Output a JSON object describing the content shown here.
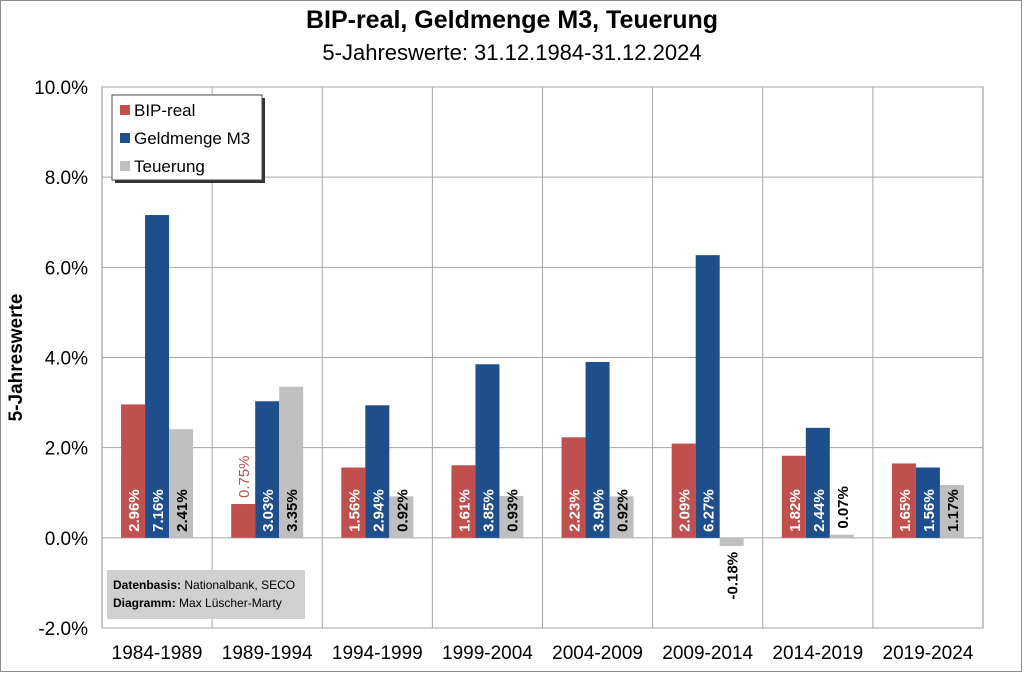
{
  "chart_data": {
    "type": "bar",
    "title": "BIP-real, Geldmenge M3, Teuerung",
    "subtitle": "5-Jahreswerte: 31.12.1984-31.12.2024",
    "ylabel": "5-Jahreswerte",
    "xlabel": "",
    "ylim": [
      -2,
      10
    ],
    "yticks": [
      "-2.0%",
      "0.0%",
      "2.0%",
      "4.0%",
      "6.0%",
      "8.0%",
      "10.0%"
    ],
    "grid": true,
    "legend_position": "top-left",
    "categories": [
      "1984-1989",
      "1989-1994",
      "1994-1999",
      "1999-2004",
      "2004-2009",
      "2009-2014",
      "2014-2019",
      "2019-2024"
    ],
    "series": [
      {
        "name": "BIP-real",
        "color": "#c0504d",
        "values": [
          2.96,
          0.75,
          1.56,
          1.61,
          2.23,
          2.09,
          1.82,
          1.65
        ],
        "labels": [
          "2.96%",
          "0.75%",
          "1.56%",
          "1.61%",
          "2.23%",
          "2.09%",
          "1.82%",
          "1.65%"
        ]
      },
      {
        "name": "Geldmenge M3",
        "color": "#1f4e8c",
        "values": [
          7.16,
          3.03,
          2.94,
          3.85,
          3.9,
          6.27,
          2.44,
          1.56
        ],
        "labels": [
          "7.16%",
          "3.03%",
          "2.94%",
          "3.85%",
          "3.90%",
          "6.27%",
          "2.44%",
          "1.56%"
        ]
      },
      {
        "name": "Teuerung",
        "color": "#bfbfbf",
        "values": [
          2.41,
          3.35,
          0.92,
          0.93,
          0.92,
          -0.18,
          0.07,
          1.17
        ],
        "labels": [
          "2.41%",
          "3.35%",
          "0.92%",
          "0.93%",
          "0.92%",
          "-0.18%",
          "0.07%",
          "1.17%"
        ]
      }
    ],
    "source_note": {
      "line1_bold": "Datenbasis:",
      "line1": "Nationalbank, SECO",
      "line2_bold": "Diagramm:",
      "line2": "Max Lüscher-Marty"
    }
  }
}
